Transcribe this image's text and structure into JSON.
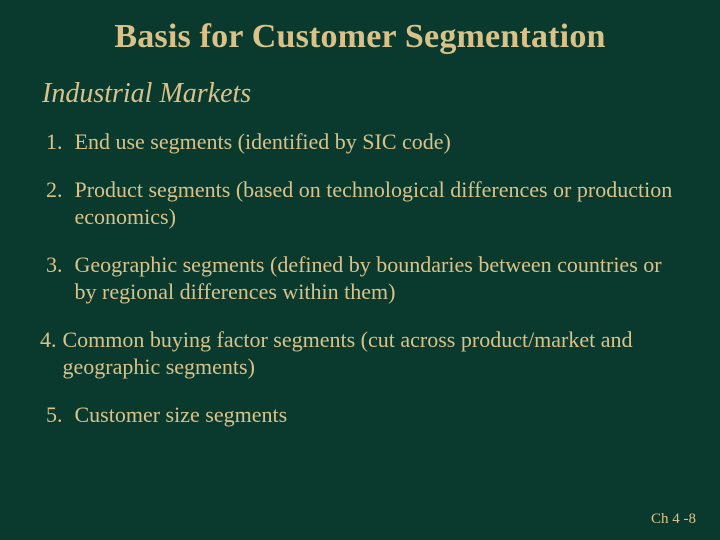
{
  "slide": {
    "background_color": "#0a3a2e",
    "text_color": "#d9c28a",
    "title": {
      "text": "Basis for Customer Segmentation",
      "font_size_pt": 34,
      "font_weight": "bold",
      "align": "center"
    },
    "subtitle": {
      "text": "Industrial Markets",
      "font_size_pt": 28,
      "font_style": "italic"
    },
    "list": {
      "font_size_pt": 22,
      "items": [
        {
          "num": "1.",
          "text": "End use segments (identified by SIC code)"
        },
        {
          "num": "2.",
          "text": "Product segments (based on technological differences or production economics)"
        },
        {
          "num": "3.",
          "text": "Geographic segments (defined by boundaries between countries or by regional differences within them)"
        },
        {
          "num": "4.",
          "text": "Common buying factor segments (cut across product/market and geographic segments)"
        },
        {
          "num": "5.",
          "text": "Customer size segments"
        }
      ]
    },
    "footer": {
      "text": "Ch 4 -8",
      "font_size_pt": 15
    }
  }
}
